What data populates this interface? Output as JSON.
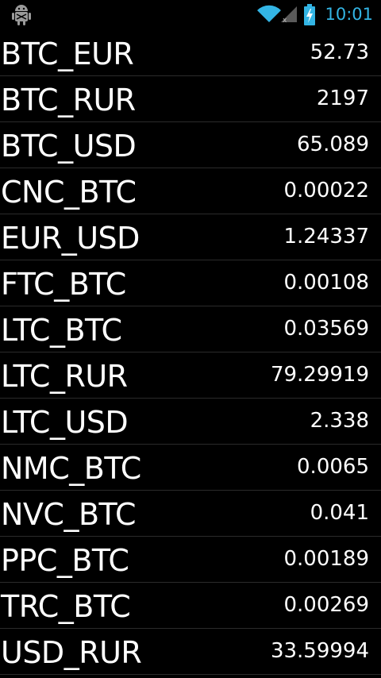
{
  "status_bar": {
    "time": "10:01",
    "accent_color": "#33b5e5",
    "icons": [
      "debug-android-icon",
      "wifi-icon",
      "cell-signal-icon",
      "battery-charging-icon"
    ]
  },
  "rates": [
    {
      "pair": "BTC_EUR",
      "value": "52.73"
    },
    {
      "pair": "BTC_RUR",
      "value": "2197"
    },
    {
      "pair": "BTC_USD",
      "value": "65.089"
    },
    {
      "pair": "CNC_BTC",
      "value": "0.00022"
    },
    {
      "pair": "EUR_USD",
      "value": "1.24337"
    },
    {
      "pair": "FTC_BTC",
      "value": "0.00108"
    },
    {
      "pair": "LTC_BTC",
      "value": "0.03569"
    },
    {
      "pair": "LTC_RUR",
      "value": "79.29919"
    },
    {
      "pair": "LTC_USD",
      "value": "2.338"
    },
    {
      "pair": "NMC_BTC",
      "value": "0.0065"
    },
    {
      "pair": "NVC_BTC",
      "value": "0.041"
    },
    {
      "pair": "PPC_BTC",
      "value": "0.00189"
    },
    {
      "pair": "TRC_BTC",
      "value": "0.00269"
    },
    {
      "pair": "USD_RUR",
      "value": "33.59994"
    }
  ]
}
